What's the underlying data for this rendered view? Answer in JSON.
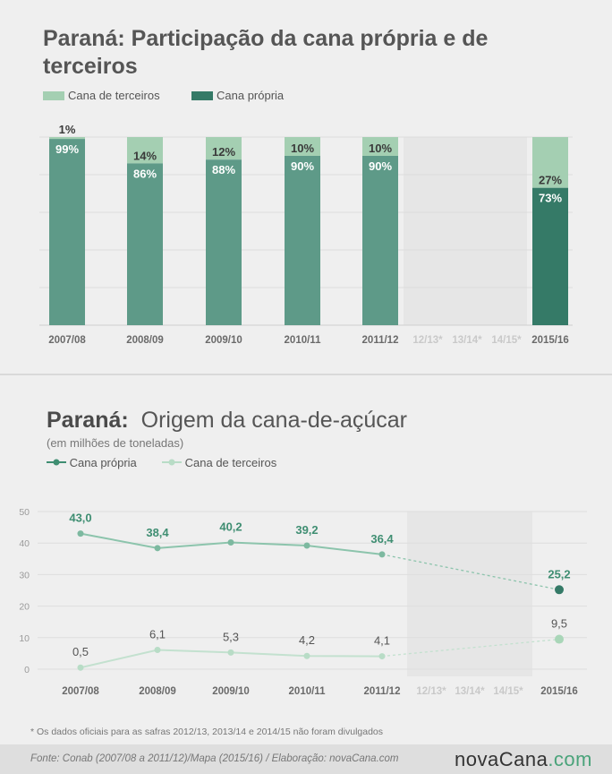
{
  "chart_data": [
    {
      "type": "bar",
      "title": "Paraná: Participação da cana própria e de terceiros",
      "categories": [
        "2007/08",
        "2008/09",
        "2009/10",
        "2010/11",
        "2011/12",
        "12/13*",
        "13/14*",
        "14/15*",
        "2015/16"
      ],
      "series": [
        {
          "name": "Cana de terceiros",
          "values": [
            1,
            14,
            12,
            10,
            10,
            null,
            null,
            null,
            27
          ],
          "labels": [
            "1%",
            "14%",
            "12%",
            "10%",
            "10%",
            "",
            "",
            "",
            "27%"
          ]
        },
        {
          "name": "Cana própria",
          "values": [
            99,
            86,
            88,
            90,
            90,
            null,
            null,
            null,
            73
          ],
          "labels": [
            "99%",
            "86%",
            "88%",
            "90%",
            "90%",
            "",
            "",
            "",
            "73%"
          ]
        }
      ],
      "stacked": true,
      "ylim": [
        0,
        100
      ],
      "grid": true,
      "legend": "top-left",
      "colors": {
        "terceiros": "#a4cfb2",
        "propria": "#5e9a88",
        "propria_highlight": "#357a67",
        "missing_band": "#e6e6e6"
      }
    },
    {
      "type": "line",
      "title_strong": "Paraná:",
      "title_rest": "Origem da cana-de-açúcar",
      "subtitle": "(em milhões de toneladas)",
      "categories": [
        "2007/08",
        "2008/09",
        "2009/10",
        "2010/11",
        "2011/12",
        "12/13*",
        "13/14*",
        "14/15*",
        "2015/16"
      ],
      "series": [
        {
          "name": "Cana própria",
          "values": [
            43.0,
            38.4,
            40.2,
            39.2,
            36.4,
            null,
            null,
            null,
            25.2
          ],
          "labels": [
            "43,0",
            "38,4",
            "40,2",
            "39,2",
            "36,4",
            "",
            "",
            "",
            "25,2"
          ]
        },
        {
          "name": "Cana de terceiros",
          "values": [
            0.5,
            6.1,
            5.3,
            4.2,
            4.1,
            null,
            null,
            null,
            9.5
          ],
          "labels": [
            "0,5",
            "6,1",
            "5,3",
            "4,2",
            "4,1",
            "",
            "",
            "",
            "9,5"
          ]
        }
      ],
      "yticks": [
        "0",
        "10",
        "20",
        "30",
        "40",
        "50"
      ],
      "ylim": [
        0,
        50
      ],
      "grid": true,
      "legend": "top-left",
      "colors": {
        "propria_line": "#8cc4ac",
        "propria_marker": "#7db9a0",
        "propria_label": "#3f8e72",
        "propria_last": "#357a67",
        "terceiros_line": "#c3e1cf",
        "terceiros_marker": "#b8dcc6",
        "terceiros_last": "#a9d6b8",
        "terceiros_label": "#555555",
        "missing_band": "#e6e6e6"
      }
    }
  ],
  "panel1": {
    "title": "Paraná: Participação da cana própria e de terceiros",
    "legend": {
      "terceiros": "Cana de terceiros",
      "propria": "Cana própria"
    }
  },
  "panel2": {
    "title_strong": "Paraná:",
    "title_rest": "Origem da cana-de-açúcar",
    "subtitle": "(em milhões de toneladas)",
    "legend": {
      "propria": "Cana própria",
      "terceiros": "Cana de terceiros"
    }
  },
  "footnote": "* Os dados oficiais para as safras 2012/13, 2013/14 e 2014/15 não foram divulgados",
  "footer": {
    "source": "Fonte:  Conab (2007/08 a 2011/12)/Mapa (2015/16) / Elaboração:  novaCana.com",
    "logo_main": "novaCana",
    "logo_suffix": ".com"
  }
}
